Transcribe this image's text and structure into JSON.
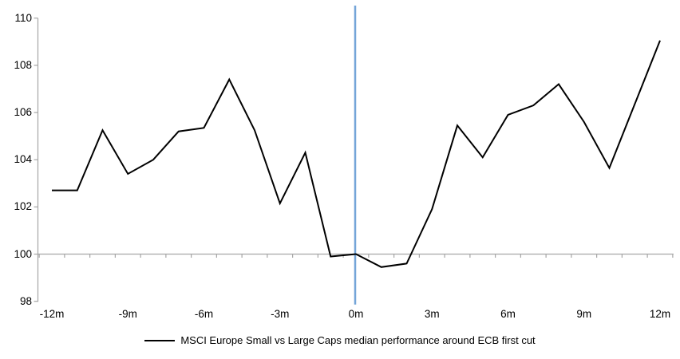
{
  "chart_data": {
    "type": "line",
    "title": "",
    "xlabel": "",
    "ylabel": "",
    "x": [
      -12,
      -11,
      -10,
      -9,
      -8,
      -7,
      -6,
      -5,
      -4,
      -3,
      -2,
      -1,
      0,
      1,
      2,
      3,
      4,
      5,
      6,
      7,
      8,
      9,
      10,
      11,
      12
    ],
    "series": [
      {
        "name": "MSCI Europe Small vs Large Caps median performance around ECB first cut",
        "color": "#000000",
        "values": [
          102.7,
          102.7,
          105.25,
          103.4,
          104.0,
          105.2,
          105.35,
          107.4,
          105.25,
          102.15,
          104.3,
          99.9,
          100.0,
          99.45,
          99.6,
          101.9,
          105.45,
          104.1,
          105.9,
          106.3,
          107.2,
          105.6,
          103.65,
          106.35,
          109.05
        ]
      }
    ],
    "xlim": [
      -12,
      12
    ],
    "ylim": [
      98,
      110
    ],
    "y_ticks": [
      110,
      108,
      106,
      104,
      102,
      100,
      98
    ],
    "x_ticks": [
      {
        "value": -12,
        "label": "-12m"
      },
      {
        "value": -9,
        "label": "-9m"
      },
      {
        "value": -6,
        "label": "-6m"
      },
      {
        "value": -3,
        "label": "-3m"
      },
      {
        "value": 0,
        "label": "0m"
      },
      {
        "value": 3,
        "label": "3m"
      },
      {
        "value": 6,
        "label": "6m"
      },
      {
        "value": 9,
        "label": "9m"
      },
      {
        "value": 12,
        "label": "12m"
      }
    ],
    "event_line": {
      "x": 0,
      "color": "#74A5D8"
    },
    "baseline": {
      "y": 100,
      "color": "#A6A6A6"
    },
    "axis_color": "#A6A6A6",
    "grid": false,
    "legend_position": "bottom"
  }
}
